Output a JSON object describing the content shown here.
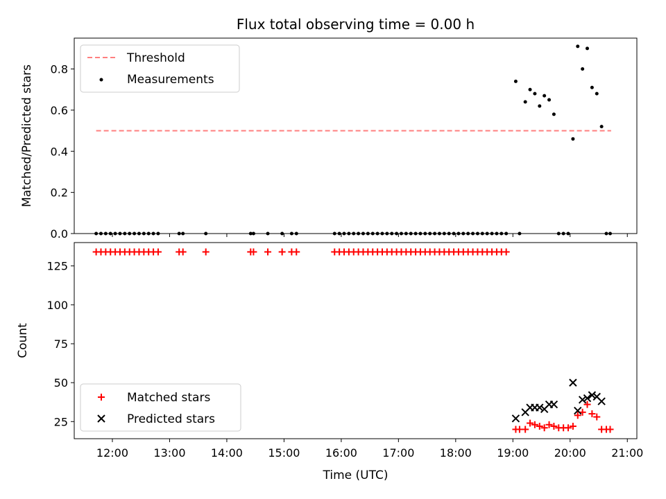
{
  "title": "Flux total observing time = 0.00 h",
  "xlabel": "Time (UTC)",
  "xticks": [
    "12:00",
    "13:00",
    "14:00",
    "15:00",
    "16:00",
    "17:00",
    "18:00",
    "19:00",
    "20:00",
    "21:00"
  ],
  "colors": {
    "threshold": "#ff7f7f",
    "measurements": "#000000",
    "matched": "#ff0000",
    "predicted": "#000000"
  },
  "chart_data": [
    {
      "type": "scatter",
      "ylabel": "Matched/Predicted stars",
      "yticks": [
        "0.0",
        "0.2",
        "0.4",
        "0.6",
        "0.8"
      ],
      "xlim": [
        "11:20",
        "21:10"
      ],
      "ylim": [
        0,
        0.95
      ],
      "legend": {
        "position": "top-left",
        "entries": [
          "Threshold",
          "Measurements"
        ]
      },
      "threshold": {
        "name": "Threshold",
        "y": 0.5,
        "x_range": [
          "11:43",
          "20:43"
        ],
        "style": "dashed"
      },
      "measurements": {
        "name": "Measurements",
        "points": [
          [
            "11:43",
            0
          ],
          [
            "11:48",
            0
          ],
          [
            "11:53",
            0
          ],
          [
            "11:58",
            0
          ],
          [
            "12:03",
            0
          ],
          [
            "12:08",
            0
          ],
          [
            "12:13",
            0
          ],
          [
            "12:18",
            0
          ],
          [
            "12:23",
            0
          ],
          [
            "12:28",
            0
          ],
          [
            "12:33",
            0
          ],
          [
            "12:38",
            0
          ],
          [
            "12:43",
            0
          ],
          [
            "12:48",
            0
          ],
          [
            "13:10",
            0
          ],
          [
            "13:14",
            0
          ],
          [
            "13:38",
            0
          ],
          [
            "14:25",
            0
          ],
          [
            "14:28",
            0
          ],
          [
            "14:43",
            0
          ],
          [
            "14:58",
            0
          ],
          [
            "15:08",
            0
          ],
          [
            "15:13",
            0
          ],
          [
            "15:53",
            0
          ],
          [
            "15:58",
            0
          ],
          [
            "16:03",
            0
          ],
          [
            "16:08",
            0
          ],
          [
            "16:13",
            0
          ],
          [
            "16:18",
            0
          ],
          [
            "16:23",
            0
          ],
          [
            "16:28",
            0
          ],
          [
            "16:33",
            0
          ],
          [
            "16:38",
            0
          ],
          [
            "16:43",
            0
          ],
          [
            "16:48",
            0
          ],
          [
            "16:53",
            0
          ],
          [
            "16:58",
            0
          ],
          [
            "17:03",
            0
          ],
          [
            "17:08",
            0
          ],
          [
            "17:13",
            0
          ],
          [
            "17:18",
            0
          ],
          [
            "17:23",
            0
          ],
          [
            "17:28",
            0
          ],
          [
            "17:33",
            0
          ],
          [
            "17:38",
            0
          ],
          [
            "17:43",
            0
          ],
          [
            "17:48",
            0
          ],
          [
            "17:53",
            0
          ],
          [
            "17:58",
            0
          ],
          [
            "18:03",
            0
          ],
          [
            "18:08",
            0
          ],
          [
            "18:13",
            0
          ],
          [
            "18:18",
            0
          ],
          [
            "18:23",
            0
          ],
          [
            "18:28",
            0
          ],
          [
            "18:33",
            0
          ],
          [
            "18:38",
            0
          ],
          [
            "18:43",
            0
          ],
          [
            "18:48",
            0
          ],
          [
            "18:53",
            0
          ],
          [
            "19:03",
            0.74
          ],
          [
            "19:07",
            0
          ],
          [
            "19:13",
            0.64
          ],
          [
            "19:18",
            0.7
          ],
          [
            "19:23",
            0.68
          ],
          [
            "19:28",
            0.62
          ],
          [
            "19:33",
            0.67
          ],
          [
            "19:38",
            0.65
          ],
          [
            "19:43",
            0.58
          ],
          [
            "19:48",
            0
          ],
          [
            "19:53",
            0
          ],
          [
            "19:58",
            0
          ],
          [
            "20:03",
            0.46
          ],
          [
            "20:08",
            0.91
          ],
          [
            "20:13",
            0.8
          ],
          [
            "20:18",
            0.9
          ],
          [
            "20:23",
            0.71
          ],
          [
            "20:28",
            0.68
          ],
          [
            "20:33",
            0.52
          ],
          [
            "20:38",
            0
          ],
          [
            "20:42",
            0
          ]
        ]
      }
    },
    {
      "type": "scatter",
      "ylabel": "Count",
      "yticks": [
        "25",
        "50",
        "75",
        "100",
        "125"
      ],
      "xlim": [
        "11:20",
        "21:10"
      ],
      "ylim": [
        14,
        140
      ],
      "legend": {
        "position": "bottom-left",
        "entries": [
          "Matched stars",
          "Predicted stars"
        ]
      },
      "series": [
        {
          "name": "Matched stars",
          "marker": "+",
          "points": [
            [
              "11:43",
              134
            ],
            [
              "11:48",
              134
            ],
            [
              "11:53",
              134
            ],
            [
              "11:58",
              134
            ],
            [
              "12:03",
              134
            ],
            [
              "12:08",
              134
            ],
            [
              "12:13",
              134
            ],
            [
              "12:18",
              134
            ],
            [
              "12:23",
              134
            ],
            [
              "12:28",
              134
            ],
            [
              "12:33",
              134
            ],
            [
              "12:38",
              134
            ],
            [
              "12:43",
              134
            ],
            [
              "12:48",
              134
            ],
            [
              "13:10",
              134
            ],
            [
              "13:14",
              134
            ],
            [
              "13:38",
              134
            ],
            [
              "14:25",
              134
            ],
            [
              "14:28",
              134
            ],
            [
              "14:43",
              134
            ],
            [
              "14:58",
              134
            ],
            [
              "15:08",
              134
            ],
            [
              "15:13",
              134
            ],
            [
              "15:53",
              134
            ],
            [
              "15:58",
              134
            ],
            [
              "16:03",
              134
            ],
            [
              "16:08",
              134
            ],
            [
              "16:13",
              134
            ],
            [
              "16:18",
              134
            ],
            [
              "16:23",
              134
            ],
            [
              "16:28",
              134
            ],
            [
              "16:33",
              134
            ],
            [
              "16:38",
              134
            ],
            [
              "16:43",
              134
            ],
            [
              "16:48",
              134
            ],
            [
              "16:53",
              134
            ],
            [
              "16:58",
              134
            ],
            [
              "17:03",
              134
            ],
            [
              "17:08",
              134
            ],
            [
              "17:13",
              134
            ],
            [
              "17:18",
              134
            ],
            [
              "17:23",
              134
            ],
            [
              "17:28",
              134
            ],
            [
              "17:33",
              134
            ],
            [
              "17:38",
              134
            ],
            [
              "17:43",
              134
            ],
            [
              "17:48",
              134
            ],
            [
              "17:53",
              134
            ],
            [
              "17:58",
              134
            ],
            [
              "18:03",
              134
            ],
            [
              "18:08",
              134
            ],
            [
              "18:13",
              134
            ],
            [
              "18:18",
              134
            ],
            [
              "18:23",
              134
            ],
            [
              "18:28",
              134
            ],
            [
              "18:33",
              134
            ],
            [
              "18:38",
              134
            ],
            [
              "18:43",
              134
            ],
            [
              "18:48",
              134
            ],
            [
              "18:53",
              134
            ],
            [
              "19:03",
              20
            ],
            [
              "19:07",
              20
            ],
            [
              "19:13",
              20
            ],
            [
              "19:18",
              24
            ],
            [
              "19:23",
              23
            ],
            [
              "19:28",
              22
            ],
            [
              "19:33",
              21
            ],
            [
              "19:38",
              23
            ],
            [
              "19:43",
              22
            ],
            [
              "19:48",
              21
            ],
            [
              "19:53",
              21
            ],
            [
              "19:58",
              21
            ],
            [
              "20:03",
              22
            ],
            [
              "20:08",
              29
            ],
            [
              "20:13",
              31
            ],
            [
              "20:18",
              36
            ],
            [
              "20:23",
              30
            ],
            [
              "20:28",
              28
            ],
            [
              "20:33",
              20
            ],
            [
              "20:38",
              20
            ],
            [
              "20:42",
              20
            ]
          ]
        },
        {
          "name": "Predicted stars",
          "marker": "x",
          "points": [
            [
              "19:03",
              27
            ],
            [
              "19:13",
              31
            ],
            [
              "19:18",
              34
            ],
            [
              "19:23",
              34
            ],
            [
              "19:28",
              34
            ],
            [
              "19:33",
              33
            ],
            [
              "19:38",
              36
            ],
            [
              "19:43",
              36
            ],
            [
              "20:03",
              50
            ],
            [
              "20:08",
              32
            ],
            [
              "20:13",
              39
            ],
            [
              "20:18",
              40
            ],
            [
              "20:23",
              42
            ],
            [
              "20:28",
              41
            ],
            [
              "20:33",
              38
            ]
          ]
        }
      ]
    }
  ]
}
